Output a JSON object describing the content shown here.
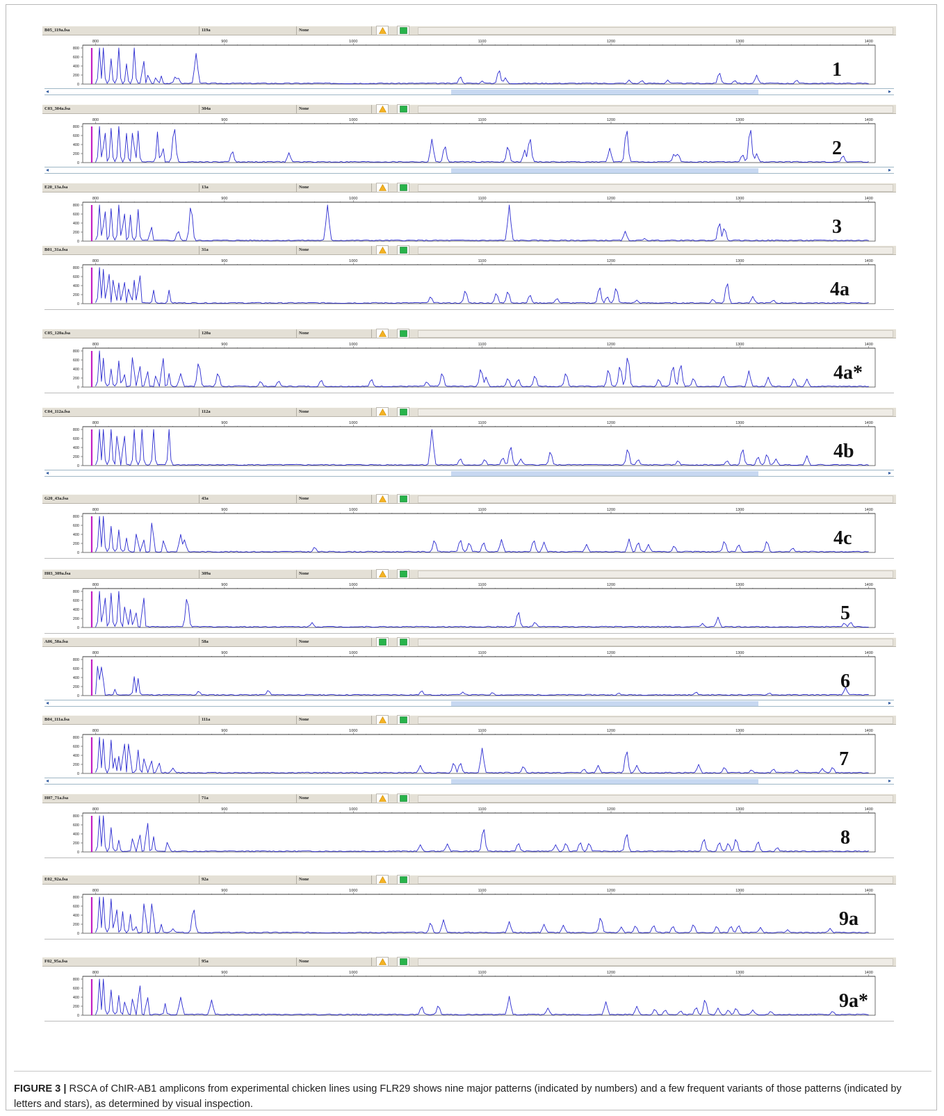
{
  "colors": {
    "trace": "#2b2bd0",
    "marker": "#c21ec2",
    "header_bg": "#e4e0d6",
    "scroll_thumb": "#c7d8f1"
  },
  "axis": {
    "ticks": [
      800,
      900,
      1000,
      1100,
      1200,
      1300,
      1400
    ],
    "yticks": [
      800,
      600,
      400,
      200,
      0
    ]
  },
  "panels": [
    {
      "label": "1",
      "file": "B05_119a.fsa",
      "sample": "119a",
      "status": "None",
      "icons": [
        "warn-icon",
        "ok-icon"
      ],
      "scrollbar": true,
      "peaks": [
        [
          803,
          800
        ],
        [
          806,
          800
        ],
        [
          812,
          560
        ],
        [
          818,
          800
        ],
        [
          824,
          450
        ],
        [
          830,
          800
        ],
        [
          837,
          620
        ],
        [
          841,
          240
        ],
        [
          847,
          170
        ],
        [
          851,
          180
        ],
        [
          862,
          170
        ],
        [
          864,
          140
        ],
        [
          878,
          680
        ],
        [
          1083,
          170
        ],
        [
          1100,
          70
        ],
        [
          1113,
          320
        ],
        [
          1118,
          140
        ],
        [
          1214,
          90
        ],
        [
          1224,
          80
        ],
        [
          1244,
          90
        ],
        [
          1284,
          260
        ],
        [
          1296,
          80
        ],
        [
          1313,
          200
        ],
        [
          1344,
          90
        ]
      ]
    },
    {
      "label": "2",
      "file": "C03_304a.fsa",
      "sample": "304a",
      "status": "None",
      "icons": [
        "warn-icon",
        "ok-icon"
      ],
      "scrollbar": true,
      "peaks": [
        [
          803,
          800
        ],
        [
          807,
          800
        ],
        [
          812,
          760
        ],
        [
          818,
          800
        ],
        [
          824,
          650
        ],
        [
          829,
          800
        ],
        [
          833,
          700
        ],
        [
          848,
          680
        ],
        [
          852,
          380
        ],
        [
          861,
          800
        ],
        [
          906,
          260
        ],
        [
          950,
          220
        ],
        [
          1061,
          520
        ],
        [
          1071,
          380
        ],
        [
          1120,
          370
        ],
        [
          1133,
          280
        ],
        [
          1137,
          560
        ],
        [
          1199,
          320
        ],
        [
          1212,
          760
        ],
        [
          1249,
          200
        ],
        [
          1252,
          200
        ],
        [
          1302,
          180
        ],
        [
          1308,
          780
        ],
        [
          1313,
          200
        ],
        [
          1380,
          160
        ]
      ]
    },
    {
      "label": "3",
      "file": "E20_13a.fsa",
      "sample": "13a",
      "status": "None",
      "icons": [
        "warn-icon",
        "ok-icon"
      ],
      "scrollbar": false,
      "peaks": [
        [
          803,
          800
        ],
        [
          807,
          800
        ],
        [
          812,
          720
        ],
        [
          818,
          800
        ],
        [
          822,
          740
        ],
        [
          827,
          580
        ],
        [
          833,
          700
        ],
        [
          843,
          380
        ],
        [
          864,
          230
        ],
        [
          874,
          800
        ],
        [
          980,
          800
        ],
        [
          1121,
          800
        ],
        [
          1211,
          220
        ],
        [
          1226,
          60
        ],
        [
          1284,
          420
        ],
        [
          1288,
          300
        ]
      ]
    },
    {
      "label": "4a",
      "file": "B01_31a.fsa",
      "sample": "31a",
      "status": "None",
      "icons": [
        "warn-icon",
        "ok-icon"
      ],
      "scrollbar": false,
      "peaks": [
        [
          803,
          800
        ],
        [
          806,
          760
        ],
        [
          810,
          800
        ],
        [
          814,
          640
        ],
        [
          818,
          460
        ],
        [
          822,
          580
        ],
        [
          826,
          400
        ],
        [
          830,
          520
        ],
        [
          834,
          760
        ],
        [
          845,
          300
        ],
        [
          857,
          300
        ],
        [
          1060,
          160
        ],
        [
          1087,
          300
        ],
        [
          1111,
          240
        ],
        [
          1120,
          280
        ],
        [
          1137,
          200
        ],
        [
          1158,
          120
        ],
        [
          1191,
          380
        ],
        [
          1197,
          160
        ],
        [
          1204,
          360
        ],
        [
          1220,
          80
        ],
        [
          1279,
          100
        ],
        [
          1290,
          480
        ],
        [
          1310,
          160
        ],
        [
          1326,
          80
        ]
      ]
    },
    {
      "label": "4a*",
      "file": "C05_120a.fsa",
      "sample": "120a",
      "status": "None",
      "icons": [
        "warn-icon",
        "ok-icon"
      ],
      "scrollbar": false,
      "peaks": [
        [
          803,
          800
        ],
        [
          806,
          640
        ],
        [
          812,
          400
        ],
        [
          818,
          580
        ],
        [
          822,
          340
        ],
        [
          829,
          800
        ],
        [
          834,
          560
        ],
        [
          840,
          420
        ],
        [
          847,
          300
        ],
        [
          852,
          780
        ],
        [
          857,
          300
        ],
        [
          866,
          300
        ],
        [
          880,
          560
        ],
        [
          895,
          320
        ],
        [
          928,
          130
        ],
        [
          942,
          140
        ],
        [
          975,
          160
        ],
        [
          1014,
          180
        ],
        [
          1057,
          120
        ],
        [
          1069,
          320
        ],
        [
          1099,
          420
        ],
        [
          1103,
          220
        ],
        [
          1120,
          200
        ],
        [
          1128,
          180
        ],
        [
          1141,
          260
        ],
        [
          1165,
          320
        ],
        [
          1198,
          400
        ],
        [
          1207,
          480
        ],
        [
          1213,
          700
        ],
        [
          1237,
          180
        ],
        [
          1248,
          480
        ],
        [
          1254,
          520
        ],
        [
          1264,
          200
        ],
        [
          1287,
          260
        ],
        [
          1307,
          360
        ],
        [
          1322,
          220
        ],
        [
          1342,
          200
        ],
        [
          1352,
          180
        ]
      ]
    },
    {
      "label": "4b",
      "file": "C04_112a.fsa",
      "sample": "112a",
      "status": "None",
      "icons": [
        "warn-icon",
        "ok-icon"
      ],
      "scrollbar": true,
      "peaks": [
        [
          803,
          800
        ],
        [
          806,
          800
        ],
        [
          812,
          800
        ],
        [
          817,
          800
        ],
        [
          822,
          800
        ],
        [
          830,
          800
        ],
        [
          836,
          800
        ],
        [
          845,
          800
        ],
        [
          857,
          800
        ],
        [
          1061,
          800
        ],
        [
          1083,
          160
        ],
        [
          1102,
          140
        ],
        [
          1116,
          180
        ],
        [
          1122,
          440
        ],
        [
          1130,
          150
        ],
        [
          1153,
          320
        ],
        [
          1213,
          380
        ],
        [
          1221,
          140
        ],
        [
          1252,
          110
        ],
        [
          1290,
          110
        ],
        [
          1302,
          380
        ],
        [
          1314,
          200
        ],
        [
          1321,
          260
        ],
        [
          1328,
          150
        ],
        [
          1352,
          220
        ]
      ]
    },
    {
      "label": "4c",
      "file": "G20_43a.fsa",
      "sample": "43a",
      "status": "None",
      "icons": [
        "warn-icon",
        "ok-icon"
      ],
      "scrollbar": false,
      "peaks": [
        [
          803,
          800
        ],
        [
          806,
          800
        ],
        [
          812,
          580
        ],
        [
          818,
          500
        ],
        [
          824,
          320
        ],
        [
          832,
          500
        ],
        [
          837,
          340
        ],
        [
          844,
          800
        ],
        [
          853,
          320
        ],
        [
          866,
          400
        ],
        [
          869,
          280
        ],
        [
          970,
          120
        ],
        [
          1063,
          280
        ],
        [
          1083,
          290
        ],
        [
          1090,
          220
        ],
        [
          1101,
          230
        ],
        [
          1115,
          290
        ],
        [
          1140,
          280
        ],
        [
          1148,
          230
        ],
        [
          1181,
          180
        ],
        [
          1214,
          300
        ],
        [
          1221,
          230
        ],
        [
          1229,
          180
        ],
        [
          1249,
          150
        ],
        [
          1288,
          260
        ],
        [
          1299,
          180
        ],
        [
          1321,
          260
        ],
        [
          1341,
          100
        ]
      ]
    },
    {
      "label": "5",
      "file": "H03_309a.fsa",
      "sample": "309a",
      "status": "None",
      "icons": [
        "warn-icon",
        "ok-icon"
      ],
      "scrollbar": false,
      "peaks": [
        [
          803,
          800
        ],
        [
          807,
          800
        ],
        [
          812,
          760
        ],
        [
          818,
          800
        ],
        [
          823,
          560
        ],
        [
          827,
          400
        ],
        [
          831,
          400
        ],
        [
          837,
          800
        ],
        [
          871,
          680
        ],
        [
          968,
          110
        ],
        [
          1128,
          360
        ],
        [
          1141,
          120
        ],
        [
          1271,
          90
        ],
        [
          1283,
          230
        ],
        [
          1381,
          100
        ],
        [
          1386,
          120
        ]
      ]
    },
    {
      "label": "6",
      "file": "A06_58a.fsa",
      "sample": "58a",
      "status": "None",
      "icons": [
        "ok-icon",
        "ok-icon"
      ],
      "scrollbar": true,
      "peaks": [
        [
          802,
          800
        ],
        [
          805,
          780
        ],
        [
          815,
          140
        ],
        [
          830,
          420
        ],
        [
          833,
          380
        ],
        [
          880,
          100
        ],
        [
          934,
          120
        ],
        [
          1053,
          110
        ],
        [
          1085,
          80
        ],
        [
          1108,
          70
        ],
        [
          1206,
          60
        ],
        [
          1266,
          80
        ],
        [
          1323,
          60
        ],
        [
          1382,
          180
        ]
      ]
    },
    {
      "label": "7",
      "file": "B04_111a.fsa",
      "sample": "111a",
      "status": "None",
      "icons": [
        "warn-icon",
        "ok-icon"
      ],
      "scrollbar": true,
      "peaks": [
        [
          803,
          800
        ],
        [
          806,
          760
        ],
        [
          812,
          740
        ],
        [
          815,
          340
        ],
        [
          818,
          380
        ],
        [
          822,
          800
        ],
        [
          826,
          800
        ],
        [
          833,
          520
        ],
        [
          838,
          400
        ],
        [
          843,
          340
        ],
        [
          849,
          280
        ],
        [
          860,
          120
        ],
        [
          1052,
          180
        ],
        [
          1078,
          240
        ],
        [
          1083,
          240
        ],
        [
          1100,
          560
        ],
        [
          1132,
          160
        ],
        [
          1179,
          100
        ],
        [
          1190,
          180
        ],
        [
          1212,
          520
        ],
        [
          1220,
          180
        ],
        [
          1268,
          200
        ],
        [
          1288,
          140
        ],
        [
          1309,
          80
        ],
        [
          1326,
          100
        ],
        [
          1344,
          80
        ],
        [
          1364,
          110
        ],
        [
          1372,
          140
        ]
      ]
    },
    {
      "label": "8",
      "file": "H07_71a.fsa",
      "sample": "71a",
      "status": "None",
      "icons": [
        "warn-icon",
        "ok-icon"
      ],
      "scrollbar": false,
      "peaks": [
        [
          803,
          800
        ],
        [
          806,
          800
        ],
        [
          812,
          540
        ],
        [
          818,
          260
        ],
        [
          829,
          360
        ],
        [
          834,
          460
        ],
        [
          840,
          780
        ],
        [
          845,
          340
        ],
        [
          856,
          260
        ],
        [
          1052,
          160
        ],
        [
          1073,
          180
        ],
        [
          1101,
          540
        ],
        [
          1128,
          200
        ],
        [
          1157,
          160
        ],
        [
          1165,
          200
        ],
        [
          1176,
          220
        ],
        [
          1183,
          200
        ],
        [
          1212,
          420
        ],
        [
          1272,
          300
        ],
        [
          1284,
          220
        ],
        [
          1291,
          200
        ],
        [
          1297,
          300
        ],
        [
          1314,
          240
        ],
        [
          1329,
          100
        ]
      ]
    },
    {
      "label": "9a",
      "file": "E02_92a.fsa",
      "sample": "92a",
      "status": "None",
      "icons": [
        "warn-icon",
        "ok-icon"
      ],
      "scrollbar": false,
      "peaks": [
        [
          803,
          800
        ],
        [
          806,
          800
        ],
        [
          812,
          760
        ],
        [
          816,
          640
        ],
        [
          821,
          480
        ],
        [
          827,
          420
        ],
        [
          831,
          180
        ],
        [
          838,
          800
        ],
        [
          844,
          800
        ],
        [
          851,
          200
        ],
        [
          860,
          100
        ],
        [
          876,
          560
        ],
        [
          1060,
          240
        ],
        [
          1070,
          300
        ],
        [
          1121,
          260
        ],
        [
          1148,
          200
        ],
        [
          1163,
          180
        ],
        [
          1192,
          360
        ],
        [
          1208,
          140
        ],
        [
          1219,
          170
        ],
        [
          1233,
          180
        ],
        [
          1248,
          160
        ],
        [
          1264,
          200
        ],
        [
          1282,
          160
        ],
        [
          1293,
          160
        ],
        [
          1299,
          180
        ],
        [
          1316,
          130
        ],
        [
          1337,
          80
        ],
        [
          1370,
          110
        ]
      ]
    },
    {
      "label": "9a*",
      "file": "F02_95a.fsa",
      "sample": "95a",
      "status": "None",
      "icons": [
        "warn-icon",
        "ok-icon"
      ],
      "scrollbar": false,
      "peaks": [
        [
          803,
          800
        ],
        [
          806,
          800
        ],
        [
          812,
          560
        ],
        [
          818,
          440
        ],
        [
          823,
          360
        ],
        [
          829,
          440
        ],
        [
          834,
          800
        ],
        [
          840,
          480
        ],
        [
          854,
          260
        ],
        [
          866,
          400
        ],
        [
          890,
          340
        ],
        [
          1053,
          200
        ],
        [
          1066,
          220
        ],
        [
          1121,
          420
        ],
        [
          1151,
          160
        ],
        [
          1196,
          300
        ],
        [
          1220,
          200
        ],
        [
          1234,
          140
        ],
        [
          1242,
          120
        ],
        [
          1254,
          100
        ],
        [
          1266,
          180
        ],
        [
          1273,
          360
        ],
        [
          1283,
          160
        ],
        [
          1291,
          120
        ],
        [
          1297,
          160
        ],
        [
          1310,
          120
        ],
        [
          1324,
          90
        ],
        [
          1372,
          90
        ]
      ]
    }
  ],
  "caption": {
    "prefix": "FIGURE 3 |",
    "text": " RSCA of ChIR-AB1 amplicons from experimental chicken lines using FLR29 shows nine major patterns (indicated by numbers) and a few frequent variants of those patterns (indicated by letters and stars), as determined by visual inspection."
  }
}
